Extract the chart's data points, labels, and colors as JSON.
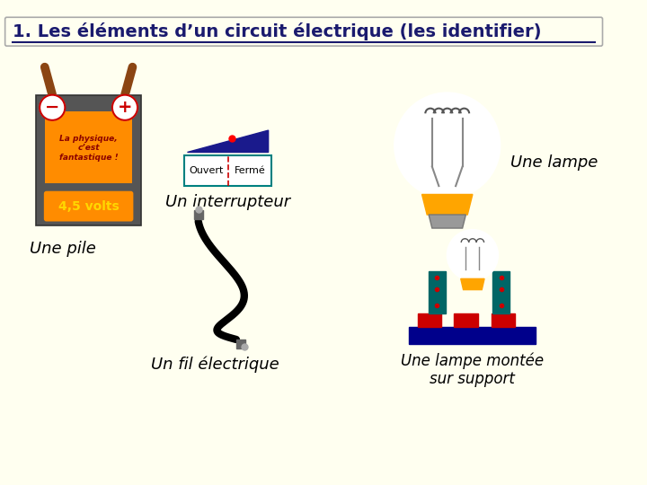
{
  "title": "1. Les éléments d’un circuit électrique (les identifier)",
  "bg_color": "#FFFFF0",
  "title_color": "#1a1a6e",
  "title_fontsize": 14,
  "label_interrupteur": "Un interrupteur",
  "label_lampe": "Une lampe",
  "label_pile": "Une pile",
  "label_fil": "Un fil électrique",
  "label_lampe_support": "Une lampe montée\nsur support",
  "label_ouvert": "Ouvert",
  "label_ferme": "Fermé",
  "pile_text1": "La physique,\nc’est\nfantastique !",
  "pile_text2": "4,5 volts"
}
